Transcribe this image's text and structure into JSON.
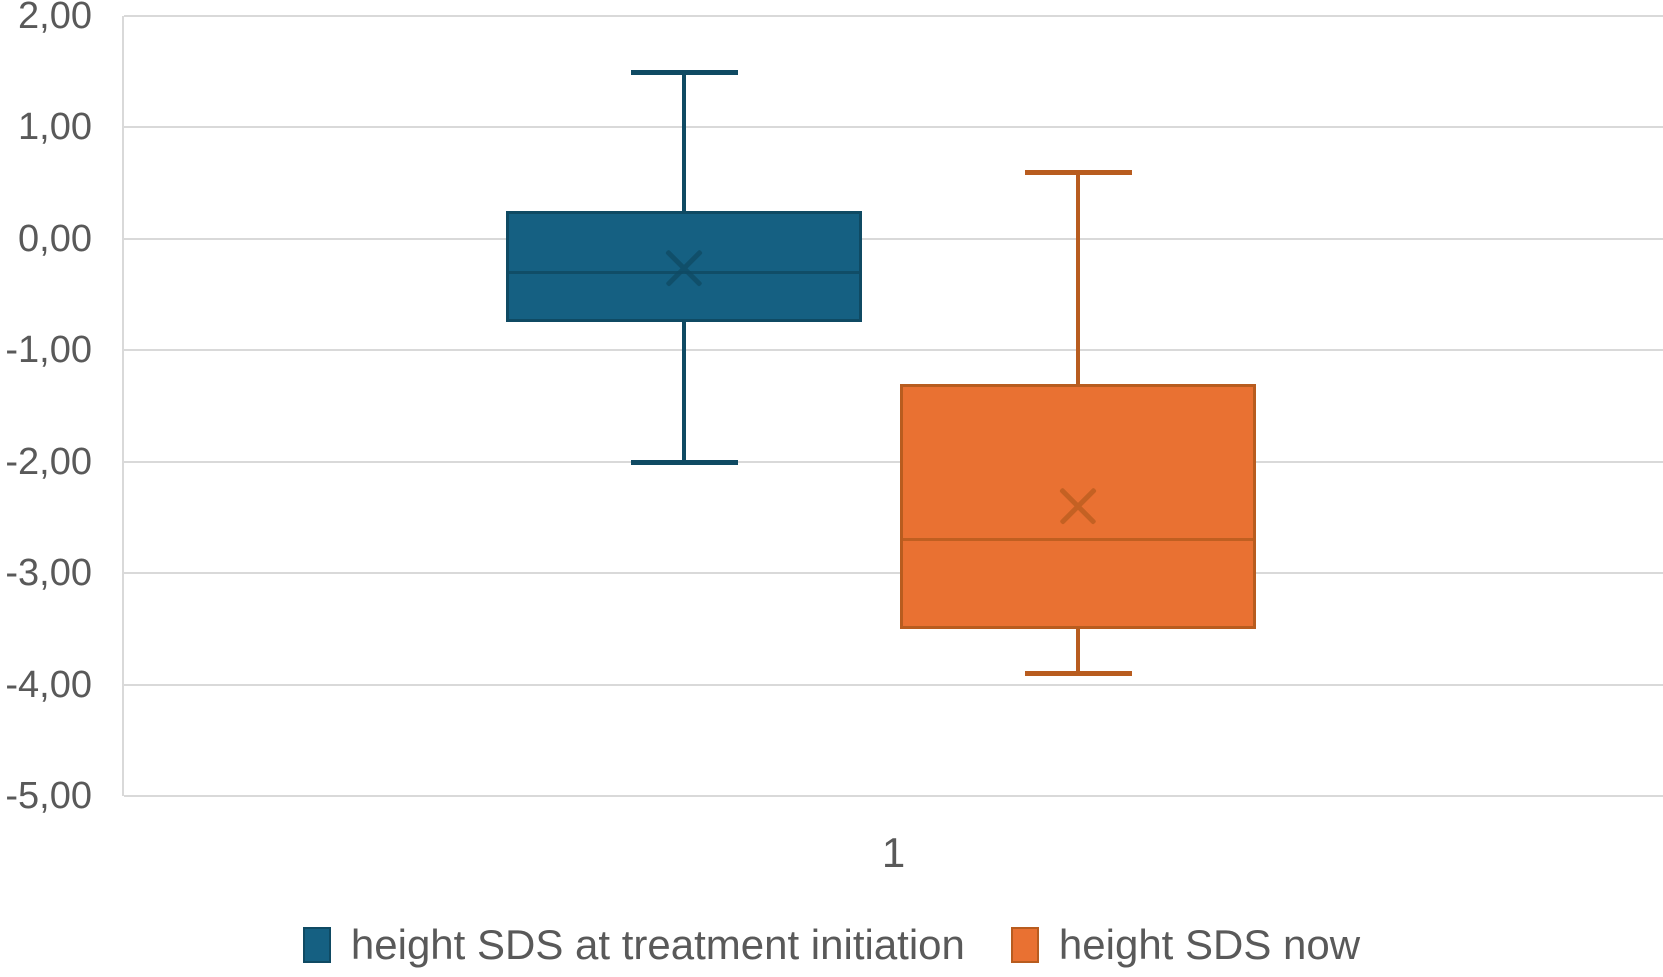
{
  "chart_data": {
    "type": "boxplot",
    "title": "",
    "categories": [
      "1"
    ],
    "y_axis": {
      "min": -5,
      "max": 2,
      "step": 1,
      "decimal_separator": ",",
      "tick_labels_top_to_bottom": [
        "2,00",
        "1,00",
        "0,00",
        "-1,00",
        "-2,00",
        "-3,00",
        "-4,00",
        "-5,00"
      ]
    },
    "series": [
      {
        "name": "height SDS at treatment initiation",
        "fill_color": "#156082",
        "line_color": "#0F4A63",
        "min": -2.0,
        "q1": -0.75,
        "median": -0.3,
        "q3": 0.25,
        "max": 1.5,
        "mean": -0.26
      },
      {
        "name": "height SDS now",
        "fill_color": "#E97132",
        "line_color": "#B85C1F",
        "min": -3.9,
        "q1": -3.5,
        "median": -2.7,
        "q3": -1.3,
        "max": 0.6,
        "mean": -2.4
      }
    ],
    "legend": {
      "position": "bottom",
      "entries": [
        "height SDS at treatment initiation",
        "height SDS now"
      ]
    },
    "layout_hints": {
      "grid": "horizontal",
      "gridline_color": "#D9D9D9",
      "axis_text_color": "#595959",
      "series_center_fractions": [
        0.364,
        0.62
      ],
      "box_width_fraction": 0.2313,
      "whisker_cap_fraction": 0.3
    }
  }
}
